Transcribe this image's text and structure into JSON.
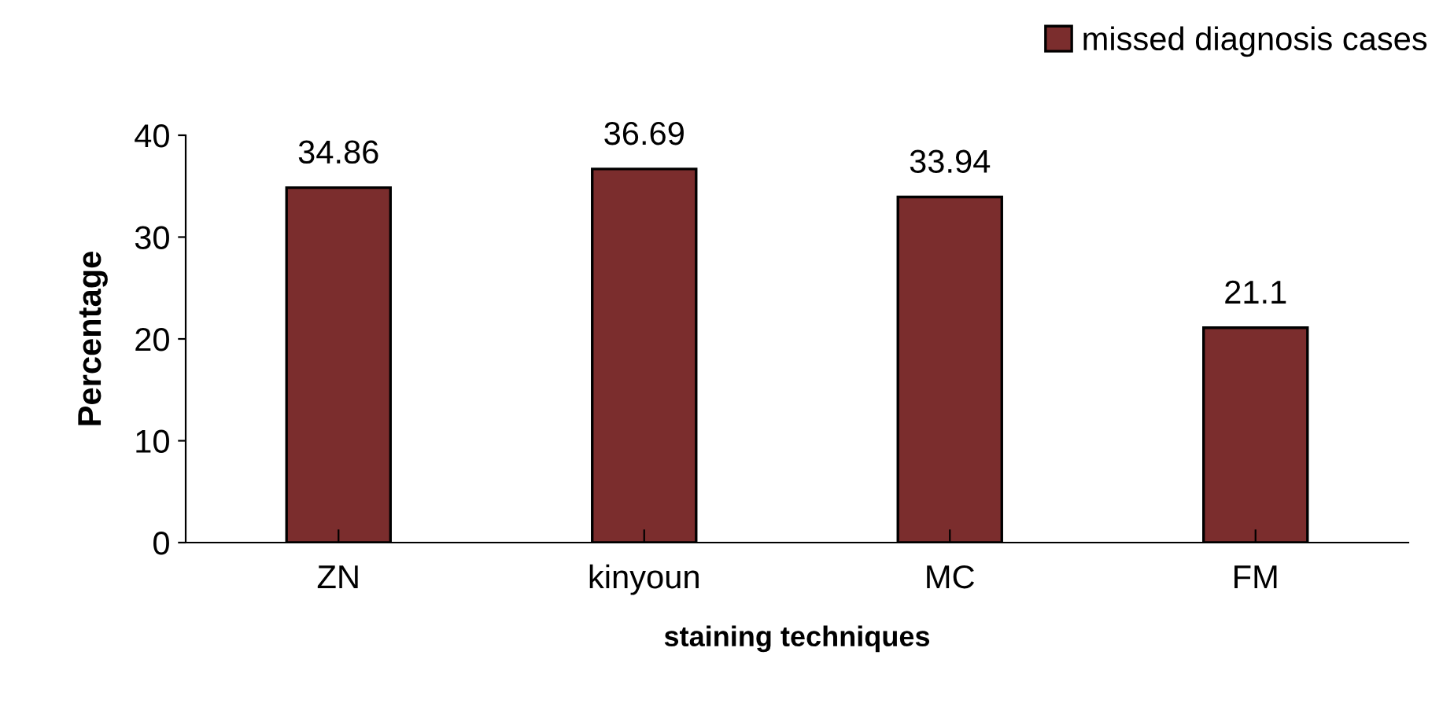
{
  "chart_data": {
    "type": "bar",
    "xlabel": "staining techniques",
    "ylabel": "Percentage",
    "categories": [
      "ZN",
      "kinyoun",
      "MC",
      "FM"
    ],
    "series": [
      {
        "name": "missed diagnosis cases",
        "color": "#7b2d2d",
        "values": [
          34.86,
          36.69,
          33.94,
          21.1
        ]
      }
    ],
    "ylim": [
      0,
      40
    ],
    "yticks": [
      0,
      10,
      20,
      30,
      40
    ],
    "grid": false,
    "legend": "top right",
    "data_labels": true
  }
}
